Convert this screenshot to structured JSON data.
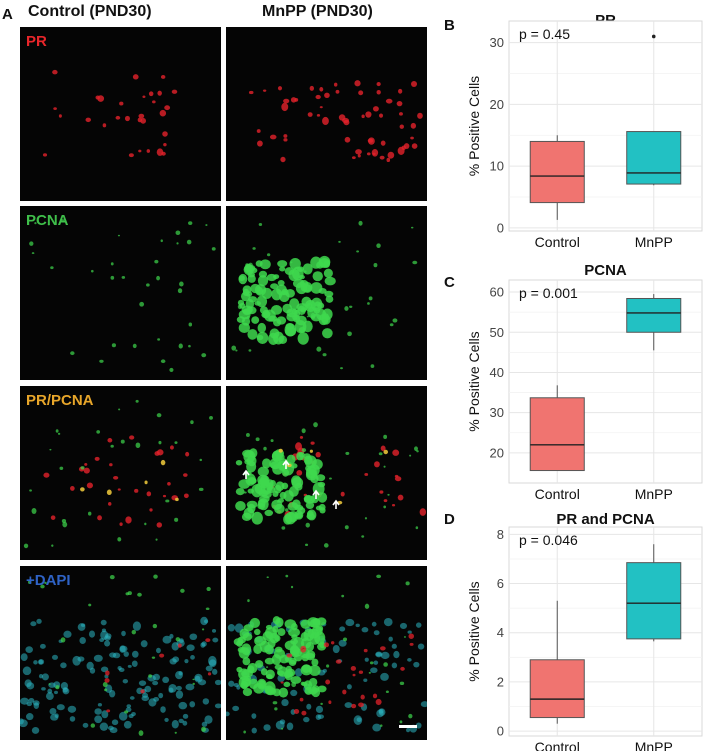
{
  "figure": {
    "panel_a_letter": "A",
    "columns": [
      "Control (PND30)",
      "MnPP (PND30)"
    ],
    "rows": [
      {
        "label": "PR",
        "color": "#e8262a"
      },
      {
        "label": "PCNA",
        "color": "#3fbf4a"
      },
      {
        "label": "PR/PCNA",
        "color": "#e8a62a"
      },
      {
        "label": "+DAPI",
        "color": "#2f63c6"
      }
    ]
  },
  "colors": {
    "control": "#f07470",
    "mnpp": "#22c1c3"
  },
  "chart_data": [
    {
      "panel": "B",
      "type": "box",
      "title": "PR",
      "ylabel": "% Positive Cells",
      "categories": [
        "Control",
        "MnPP"
      ],
      "pvalue_text": "p = 0.45",
      "ylim": [
        -0.5,
        33.5
      ],
      "yticks": [
        0,
        10,
        20,
        30
      ],
      "boxes": [
        {
          "name": "Control",
          "min": 1.3,
          "q1": 4.1,
          "median": 8.4,
          "q3": 14.0,
          "max": 15.0,
          "outliers": []
        },
        {
          "name": "MnPP",
          "min": 6.9,
          "q1": 7.1,
          "median": 8.9,
          "q3": 15.6,
          "max": 15.6,
          "outliers": [
            31.0
          ]
        }
      ]
    },
    {
      "panel": "C",
      "type": "box",
      "title": "PCNA",
      "ylabel": "% Positive Cells",
      "categories": [
        "Control",
        "MnPP"
      ],
      "pvalue_text": "p = 0.001",
      "ylim": [
        12.5,
        63
      ],
      "yticks": [
        20,
        30,
        40,
        50,
        60
      ],
      "boxes": [
        {
          "name": "Control",
          "min": 15.5,
          "q1": 15.6,
          "median": 22.0,
          "q3": 33.7,
          "max": 36.8,
          "outliers": []
        },
        {
          "name": "MnPP",
          "min": 45.5,
          "q1": 50.0,
          "median": 54.8,
          "q3": 58.4,
          "max": 59.5,
          "outliers": []
        }
      ]
    },
    {
      "panel": "D",
      "type": "box",
      "title": "PR and PCNA",
      "ylabel": "% Positive Cells",
      "categories": [
        "Control",
        "MnPP"
      ],
      "pvalue_text": "p = 0.046",
      "ylim": [
        -0.2,
        8.3
      ],
      "yticks": [
        0,
        2,
        4,
        6,
        8
      ],
      "boxes": [
        {
          "name": "Control",
          "min": 0.3,
          "q1": 0.55,
          "median": 1.3,
          "q3": 2.9,
          "max": 5.3,
          "outliers": []
        },
        {
          "name": "MnPP",
          "min": 3.65,
          "q1": 3.75,
          "median": 5.2,
          "q3": 6.85,
          "max": 7.6,
          "outliers": []
        }
      ]
    }
  ]
}
